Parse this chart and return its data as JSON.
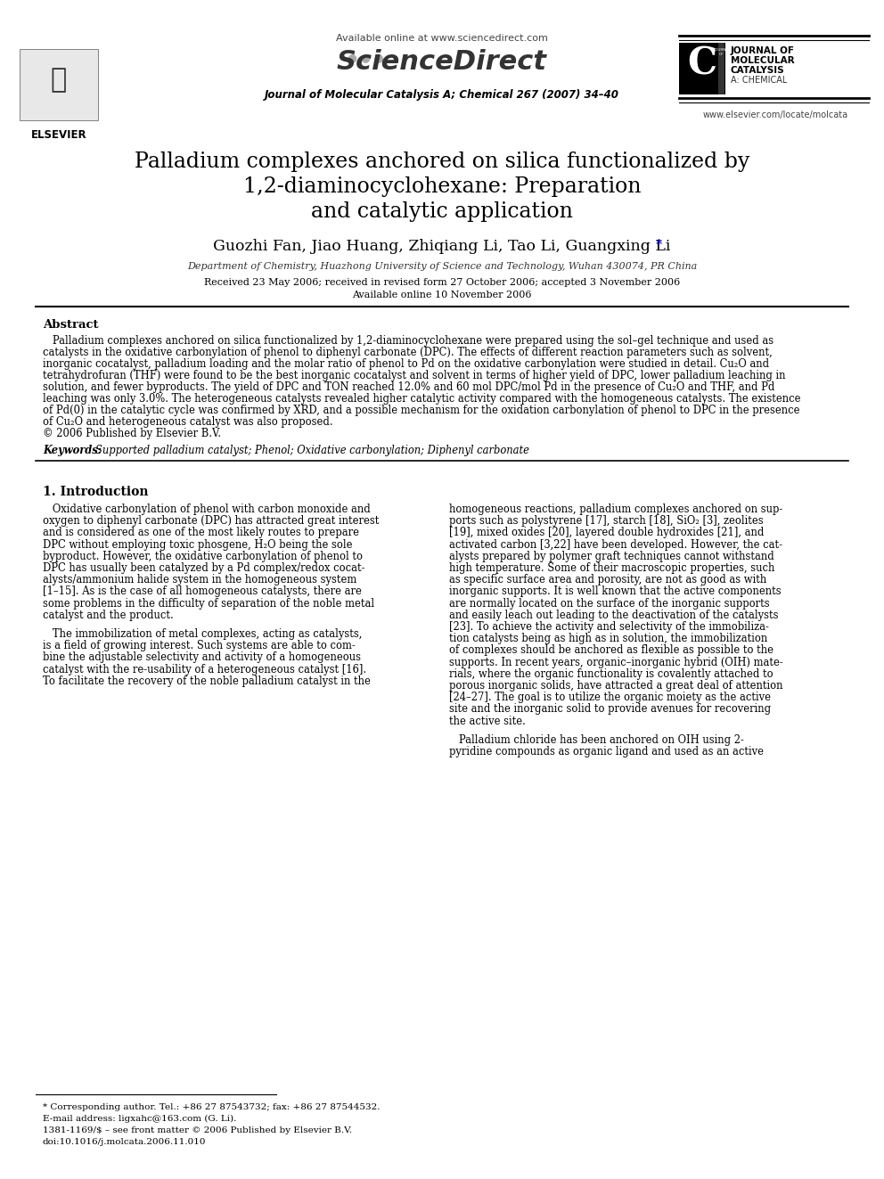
{
  "bg_color": "#ffffff",
  "header_available_online": "Available online at www.sciencedirect.com",
  "journal_line": "Journal of Molecular Catalysis A; Chemical 267 (2007) 34–40",
  "elsevier_text": "ELSEVIER",
  "journal_right_lines": [
    "JOURNAL OF",
    "MOLECULAR",
    "CATALYSIS",
    "A: CHEMICAL"
  ],
  "website_right": "www.elsevier.com/locate/molcata",
  "paper_title_line1": "Palladium complexes anchored on silica functionalized by",
  "paper_title_line2": "1,2-diaminocyclohexane: Preparation",
  "paper_title_line3": "and catalytic application",
  "authors": "Guozhi Fan, Jiao Huang, Zhiqiang Li, Tao Li, Guangxing Li",
  "authors_star": "*",
  "affiliation": "Department of Chemistry, Huazhong University of Science and Technology, Wuhan 430074, PR China",
  "received": "Received 23 May 2006; received in revised form 27 October 2006; accepted 3 November 2006",
  "available_online": "Available online 10 November 2006",
  "abstract_title": "Abstract",
  "keywords_label": "Keywords:  ",
  "keywords_text": "Supported palladium catalyst; Phenol; Oxidative carbonylation; Diphenyl carbonate",
  "section1_title": "1. Introduction",
  "footnote_line1": "* Corresponding author. Tel.: +86 27 87543732; fax: +86 27 87544532.",
  "footnote_line2": "E-mail address: ligxahc@163.com (G. Li).",
  "footnote_issn": "1381-1169/$ – see front matter © 2006 Published by Elsevier B.V.",
  "footnote_doi": "doi:10.1016/j.molcata.2006.11.010"
}
